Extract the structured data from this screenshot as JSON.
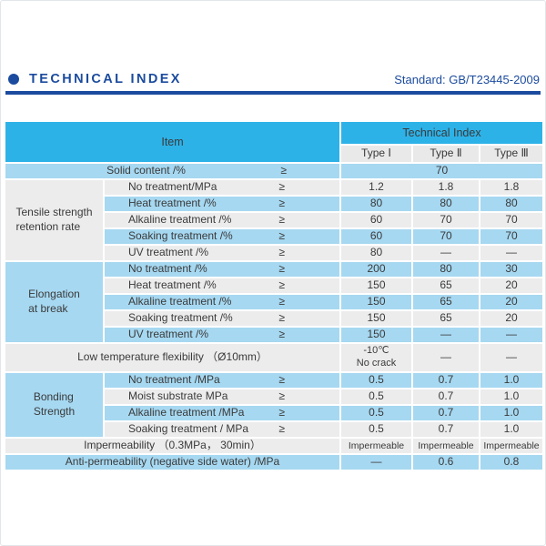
{
  "page": {
    "title": "TECHNICAL INDEX",
    "standard": "Standard: GB/T23445-2009"
  },
  "colors": {
    "navy": "#1B4B9E",
    "header_cyan": "#2DB2E8",
    "row_blue": "#A6D8F1",
    "row_gray": "#ECECEC",
    "type_header_gray": "#E9E9E9",
    "text": "#3A3A3A"
  },
  "table": {
    "item_header": "Item",
    "tech_header": "Technical Index",
    "type_headers": [
      "Type Ⅰ",
      "Type Ⅱ",
      "Type Ⅲ"
    ],
    "sections": [
      {
        "type": "merged",
        "label": "Solid content /%",
        "geq": "≥",
        "bg": "blue",
        "values": [
          "70"
        ]
      },
      {
        "type": "group",
        "label_lines": [
          "Tensile strength",
          "retention rate"
        ],
        "bg": "gray",
        "items": [
          {
            "label": "No treatment/MPa",
            "geq": "≥",
            "bg": "gray",
            "values": [
              "1.2",
              "1.8",
              "1.8"
            ]
          },
          {
            "label": "Heat treatment /%",
            "geq": "≥",
            "bg": "blue",
            "values": [
              "80",
              "80",
              "80"
            ]
          },
          {
            "label": "Alkaline treatment /%",
            "geq": "≥",
            "bg": "gray",
            "values": [
              "60",
              "70",
              "70"
            ]
          },
          {
            "label": "Soaking treatment /%",
            "geq": "≥",
            "bg": "blue",
            "values": [
              "60",
              "70",
              "70"
            ]
          },
          {
            "label": "UV treatment /%",
            "geq": "≥",
            "bg": "gray",
            "values": [
              "80",
              "—",
              "—"
            ]
          }
        ]
      },
      {
        "type": "group",
        "label_lines": [
          "Elongation",
          "at break"
        ],
        "bg": "blue",
        "items": [
          {
            "label": "No treatment /%",
            "geq": "≥",
            "bg": "blue",
            "values": [
              "200",
              "80",
              "30"
            ]
          },
          {
            "label": "Heat treatment /%",
            "geq": "≥",
            "bg": "gray",
            "values": [
              "150",
              "65",
              "20"
            ]
          },
          {
            "label": "Alkaline treatment /%",
            "geq": "≥",
            "bg": "blue",
            "values": [
              "150",
              "65",
              "20"
            ]
          },
          {
            "label": "Soaking treatment /%",
            "geq": "≥",
            "bg": "gray",
            "values": [
              "150",
              "65",
              "20"
            ]
          },
          {
            "label": "UV treatment /%",
            "geq": "≥",
            "bg": "blue",
            "values": [
              "150",
              "—",
              "—"
            ]
          }
        ]
      },
      {
        "type": "merged",
        "label": "Low temperature flexibility （Ø10mm）",
        "geq": "",
        "bg": "gray",
        "values": [
          "-10℃\nNo crack",
          "—",
          "—"
        ]
      },
      {
        "type": "group",
        "label_lines": [
          "Bonding",
          "Strength"
        ],
        "bg": "blue",
        "items": [
          {
            "label": "No treatment /MPa",
            "geq": "≥",
            "bg": "blue",
            "values": [
              "0.5",
              "0.7",
              "1.0"
            ]
          },
          {
            "label": "Moist substrate MPa",
            "geq": "≥",
            "bg": "gray",
            "values": [
              "0.5",
              "0.7",
              "1.0"
            ]
          },
          {
            "label": "Alkaline treatment /MPa",
            "geq": "≥",
            "bg": "blue",
            "values": [
              "0.5",
              "0.7",
              "1.0"
            ]
          },
          {
            "label": "Soaking treatment / MPa",
            "geq": "≥",
            "bg": "gray",
            "values": [
              "0.5",
              "0.7",
              "1.0"
            ]
          }
        ]
      },
      {
        "type": "merged",
        "label": "Impermeability （0.3MPa， 30min）",
        "geq": "",
        "bg": "gray",
        "values_small": true,
        "values": [
          "Impermeable",
          "Impermeable",
          "Impermeable"
        ]
      },
      {
        "type": "merged",
        "label": "Anti-permeability (negative side water) /MPa",
        "geq": "",
        "bg": "blue",
        "values": [
          "—",
          "0.6",
          "0.8"
        ]
      }
    ]
  }
}
